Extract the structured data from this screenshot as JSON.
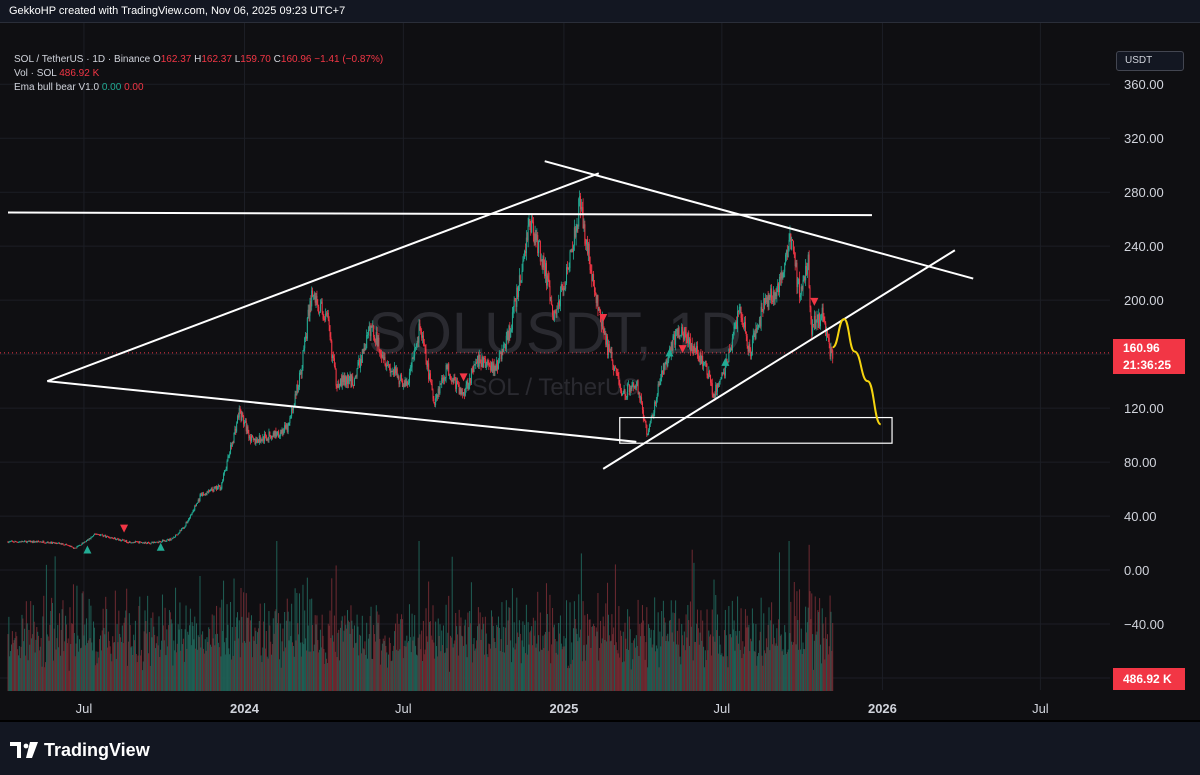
{
  "header": {
    "credit": "GekkoHP created with TradingView.com, Nov 06, 2025 09:23 UTC+7"
  },
  "legend": {
    "symbol_line": "SOL / TetherUS · 1D · Binance",
    "o_label": "O",
    "o_value": "162.37",
    "h_label": "H",
    "h_value": "162.37",
    "l_label": "L",
    "l_value": "159.70",
    "c_label": "C",
    "c_value": "160.96",
    "change": "−1.41 (−0.87%)",
    "vol_label": "Vol · SOL",
    "vol_value": "486.92 K",
    "indicator_label": "Ema bull bear V1.0",
    "indicator_v1": "0.00",
    "indicator_v2": "0.00"
  },
  "currency_button": "USDT",
  "watermark": {
    "symbol": "SOLUSDT, 1D",
    "name": "SOL / TetherUS"
  },
  "price_tags": {
    "last_price": "160.96",
    "countdown": "21:36:25",
    "volume": "486.92 K"
  },
  "footer": {
    "brand": "TradingView"
  },
  "colors": {
    "up": "#22ab94",
    "down": "#f23645",
    "projection": "#f5d40f",
    "trendline": "#ffffff",
    "background": "#0f0f12"
  },
  "chart_data": {
    "type": "candlestick",
    "symbol": "SOL / TetherUS",
    "interval": "1D",
    "exchange": "Binance",
    "y_axis": {
      "ticks": [
        "360.00",
        "320.00",
        "280.00",
        "240.00",
        "200.00",
        "160.00",
        "120.00",
        "80.00",
        "40.00",
        "0.00",
        "−40.00",
        "−80.00"
      ],
      "tick_values": [
        360,
        320,
        280,
        240,
        200,
        160,
        120,
        80,
        40,
        0,
        -40,
        -80
      ],
      "range": [
        -100,
        375
      ]
    },
    "x_axis": {
      "ticks": [
        "Jul",
        "2024",
        "Jul",
        "2025",
        "Jul",
        "2026",
        "Jul"
      ],
      "tick_dates": [
        "2023-07-01",
        "2024-01-01",
        "2024-07-01",
        "2025-01-01",
        "2025-07-01",
        "2026-01-01",
        "2026-07-01"
      ],
      "range": [
        "2023-04-05",
        "2026-09-05"
      ]
    },
    "last_price": 160.96,
    "price_path": [
      [
        "2023-04-05",
        21
      ],
      [
        "2023-05-15",
        21
      ],
      [
        "2023-06-10",
        19
      ],
      [
        "2023-06-20",
        16
      ],
      [
        "2023-07-05",
        22
      ],
      [
        "2023-07-15",
        27
      ],
      [
        "2023-08-01",
        24
      ],
      [
        "2023-08-20",
        21
      ],
      [
        "2023-09-15",
        20
      ],
      [
        "2023-10-10",
        23
      ],
      [
        "2023-10-25",
        33
      ],
      [
        "2023-11-12",
        55
      ],
      [
        "2023-12-05",
        62
      ],
      [
        "2023-12-20",
        100
      ],
      [
        "2023-12-26",
        118
      ],
      [
        "2024-01-10",
        95
      ],
      [
        "2024-02-01",
        100
      ],
      [
        "2024-02-20",
        105
      ],
      [
        "2024-03-05",
        145
      ],
      [
        "2024-03-18",
        205
      ],
      [
        "2024-04-05",
        185
      ],
      [
        "2024-04-15",
        140
      ],
      [
        "2024-05-05",
        140
      ],
      [
        "2024-05-25",
        180
      ],
      [
        "2024-06-15",
        150
      ],
      [
        "2024-07-05",
        136
      ],
      [
        "2024-07-20",
        180
      ],
      [
        "2024-08-05",
        125
      ],
      [
        "2024-08-20",
        150
      ],
      [
        "2024-09-06",
        130
      ],
      [
        "2024-09-25",
        155
      ],
      [
        "2024-10-15",
        150
      ],
      [
        "2024-10-30",
        175
      ],
      [
        "2024-11-12",
        215
      ],
      [
        "2024-11-23",
        260
      ],
      [
        "2024-12-10",
        225
      ],
      [
        "2024-12-20",
        185
      ],
      [
        "2025-01-02",
        215
      ],
      [
        "2025-01-19",
        270
      ],
      [
        "2025-01-28",
        240
      ],
      [
        "2025-02-05",
        205
      ],
      [
        "2025-02-20",
        165
      ],
      [
        "2025-03-10",
        130
      ],
      [
        "2025-03-25",
        140
      ],
      [
        "2025-04-07",
        100
      ],
      [
        "2025-04-25",
        150
      ],
      [
        "2025-05-14",
        180
      ],
      [
        "2025-05-28",
        165
      ],
      [
        "2025-06-13",
        150
      ],
      [
        "2025-06-22",
        130
      ],
      [
        "2025-07-05",
        150
      ],
      [
        "2025-07-22",
        195
      ],
      [
        "2025-08-02",
        160
      ],
      [
        "2025-08-20",
        200
      ],
      [
        "2025-09-05",
        210
      ],
      [
        "2025-09-18",
        245
      ],
      [
        "2025-09-28",
        205
      ],
      [
        "2025-10-08",
        230
      ],
      [
        "2025-10-11",
        180
      ],
      [
        "2025-10-25",
        190
      ],
      [
        "2025-11-03",
        160
      ],
      [
        "2025-11-05",
        161
      ]
    ],
    "annotations": [
      {
        "type": "trendline",
        "from": [
          "2023-04-05",
          265
        ],
        "to": [
          "2025-12-20",
          263
        ],
        "label": "horizontal resistance"
      },
      {
        "type": "trendline",
        "from": [
          "2023-05-20",
          140
        ],
        "to": [
          "2025-03-25",
          95
        ],
        "label": "lower triangle boundary"
      },
      {
        "type": "trendline",
        "from": [
          "2023-05-20",
          140
        ],
        "to": [
          "2025-02-10",
          294
        ],
        "label": "upper triangle boundary"
      },
      {
        "type": "trendline",
        "from": [
          "2024-12-10",
          303
        ],
        "to": [
          "2026-04-15",
          216
        ],
        "label": "descending resistance"
      },
      {
        "type": "trendline",
        "from": [
          "2025-02-15",
          75
        ],
        "to": [
          "2026-03-25",
          237
        ],
        "label": "ascending support"
      },
      {
        "type": "rectangle",
        "from": [
          "2025-03-06",
          94
        ],
        "to": [
          "2026-01-12",
          113
        ],
        "label": "target zone"
      },
      {
        "type": "projection",
        "points": [
          [
            "2025-11-05",
            165
          ],
          [
            "2025-11-18",
            186
          ],
          [
            "2025-11-30",
            162
          ],
          [
            "2025-12-15",
            140
          ],
          [
            "2025-12-30",
            108
          ]
        ],
        "color": "#f5d40f"
      }
    ],
    "signals": [
      {
        "date": "2023-07-05",
        "dir": "up",
        "price": 16
      },
      {
        "date": "2023-08-16",
        "dir": "down",
        "price": 30
      },
      {
        "date": "2023-09-27",
        "dir": "up",
        "price": 18
      },
      {
        "date": "2024-09-08",
        "dir": "down",
        "price": 142
      },
      {
        "date": "2025-02-15",
        "dir": "down",
        "price": 186
      },
      {
        "date": "2025-05-02",
        "dir": "up",
        "price": 162
      },
      {
        "date": "2025-05-17",
        "dir": "down",
        "price": 163
      },
      {
        "date": "2025-07-05",
        "dir": "up",
        "price": 155
      },
      {
        "date": "2025-10-15",
        "dir": "down",
        "price": 198
      }
    ]
  }
}
